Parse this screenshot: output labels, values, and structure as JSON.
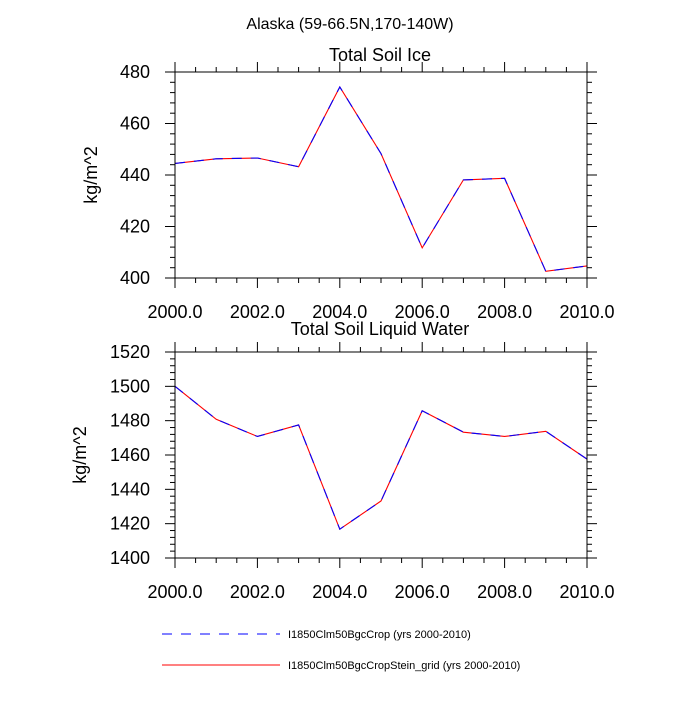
{
  "figure_title": "Alaska (59-66.5N,170-140W)",
  "legend": [
    {
      "label": "I1850Clm50BgcCrop (yrs 2000-2010)",
      "color": "#0000ff",
      "style": "dashed"
    },
    {
      "label": "I1850Clm50BgcCropStein_grid (yrs 2000-2010)",
      "color": "#ff0000",
      "style": "solid"
    }
  ],
  "chart_data": [
    {
      "type": "line",
      "title": "Total Soil Ice",
      "xlabel": "",
      "ylabel": "kg/m^2",
      "xlim": [
        2000,
        2010
      ],
      "ylim": [
        400,
        480
      ],
      "xticks": [
        "2000.0",
        "2002.0",
        "2004.0",
        "2006.0",
        "2008.0",
        "2010.0"
      ],
      "yticks": [
        "400",
        "420",
        "440",
        "460",
        "480"
      ],
      "x": [
        2000,
        2001,
        2002,
        2003,
        2004,
        2005,
        2006,
        2007,
        2008,
        2009,
        2010
      ],
      "series": [
        {
          "values": [
            444.5,
            446.3,
            446.6,
            443.2,
            474.2,
            448.3,
            411.7,
            438.1,
            438.7,
            402.6,
            404.7
          ]
        },
        {
          "values": [
            444.5,
            446.3,
            446.6,
            443.2,
            474.2,
            448.3,
            411.7,
            438.1,
            438.7,
            402.6,
            404.7
          ]
        }
      ]
    },
    {
      "type": "line",
      "title": "Total Soil Liquid Water",
      "xlabel": "",
      "ylabel": "kg/m^2",
      "xlim": [
        2000,
        2010
      ],
      "ylim": [
        1400,
        1520
      ],
      "xticks": [
        "2000.0",
        "2002.0",
        "2004.0",
        "2006.0",
        "2008.0",
        "2010.0"
      ],
      "yticks": [
        "1400",
        "1420",
        "1440",
        "1460",
        "1480",
        "1500",
        "1520"
      ],
      "x": [
        2000,
        2001,
        2002,
        2003,
        2004,
        2005,
        2006,
        2007,
        2008,
        2009,
        2010
      ],
      "series": [
        {
          "values": [
            1500.0,
            1480.8,
            1470.8,
            1477.5,
            1416.8,
            1433.2,
            1485.8,
            1473.3,
            1470.8,
            1473.8,
            1457.6
          ]
        },
        {
          "values": [
            1500.0,
            1480.8,
            1470.8,
            1477.5,
            1416.8,
            1433.2,
            1485.8,
            1473.3,
            1470.8,
            1473.8,
            1457.6
          ]
        }
      ]
    }
  ]
}
